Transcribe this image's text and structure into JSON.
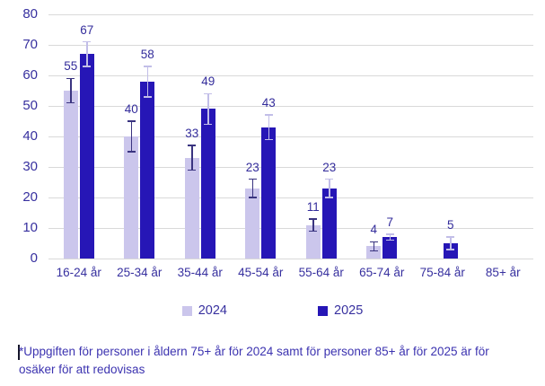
{
  "chart_data": {
    "type": "bar",
    "title": "",
    "xlabel": "",
    "ylabel": "",
    "categories": [
      "16-24 år",
      "25-34 år",
      "35-44 år",
      "45-54 år",
      "55-64 år",
      "65-74 år",
      "75-84 år",
      "85+ år"
    ],
    "series": [
      {
        "name": "2024",
        "color": "#cbc6ec",
        "whisker_color": "#3a3480",
        "values": [
          55,
          40,
          33,
          23,
          11,
          4,
          null,
          null
        ],
        "errors": [
          4,
          5,
          4,
          3,
          2,
          1.5,
          null,
          null
        ]
      },
      {
        "name": "2025",
        "color": "#2616b6",
        "whisker_color": "#c2bee8",
        "values": [
          67,
          58,
          49,
          43,
          23,
          7,
          5,
          null
        ],
        "errors": [
          4,
          5,
          5,
          4,
          3,
          1,
          2,
          null
        ]
      }
    ],
    "ylim": [
      0,
      80
    ],
    "ytick_step": 10,
    "yticks": [
      0,
      10,
      20,
      30,
      40,
      50,
      60,
      70,
      80
    ],
    "grid": true,
    "error_bars": true,
    "legend_position": "bottom"
  },
  "footnote": {
    "lines": [
      "*Uppgiften för personer i åldern 75+ år för 2024 samt för personer 85+ år för 2025 är för",
      "osäker för att redovisas"
    ]
  },
  "colors": {
    "bar_2024": "#cbc6ec",
    "bar_2025": "#2616b6",
    "error_bar_on_light": "#3a3480",
    "error_bar_on_dark": "#c2bee8",
    "axis_text": "#37309f",
    "footnote_text": "#3c33b0",
    "gridline": "#d9d9d9"
  }
}
